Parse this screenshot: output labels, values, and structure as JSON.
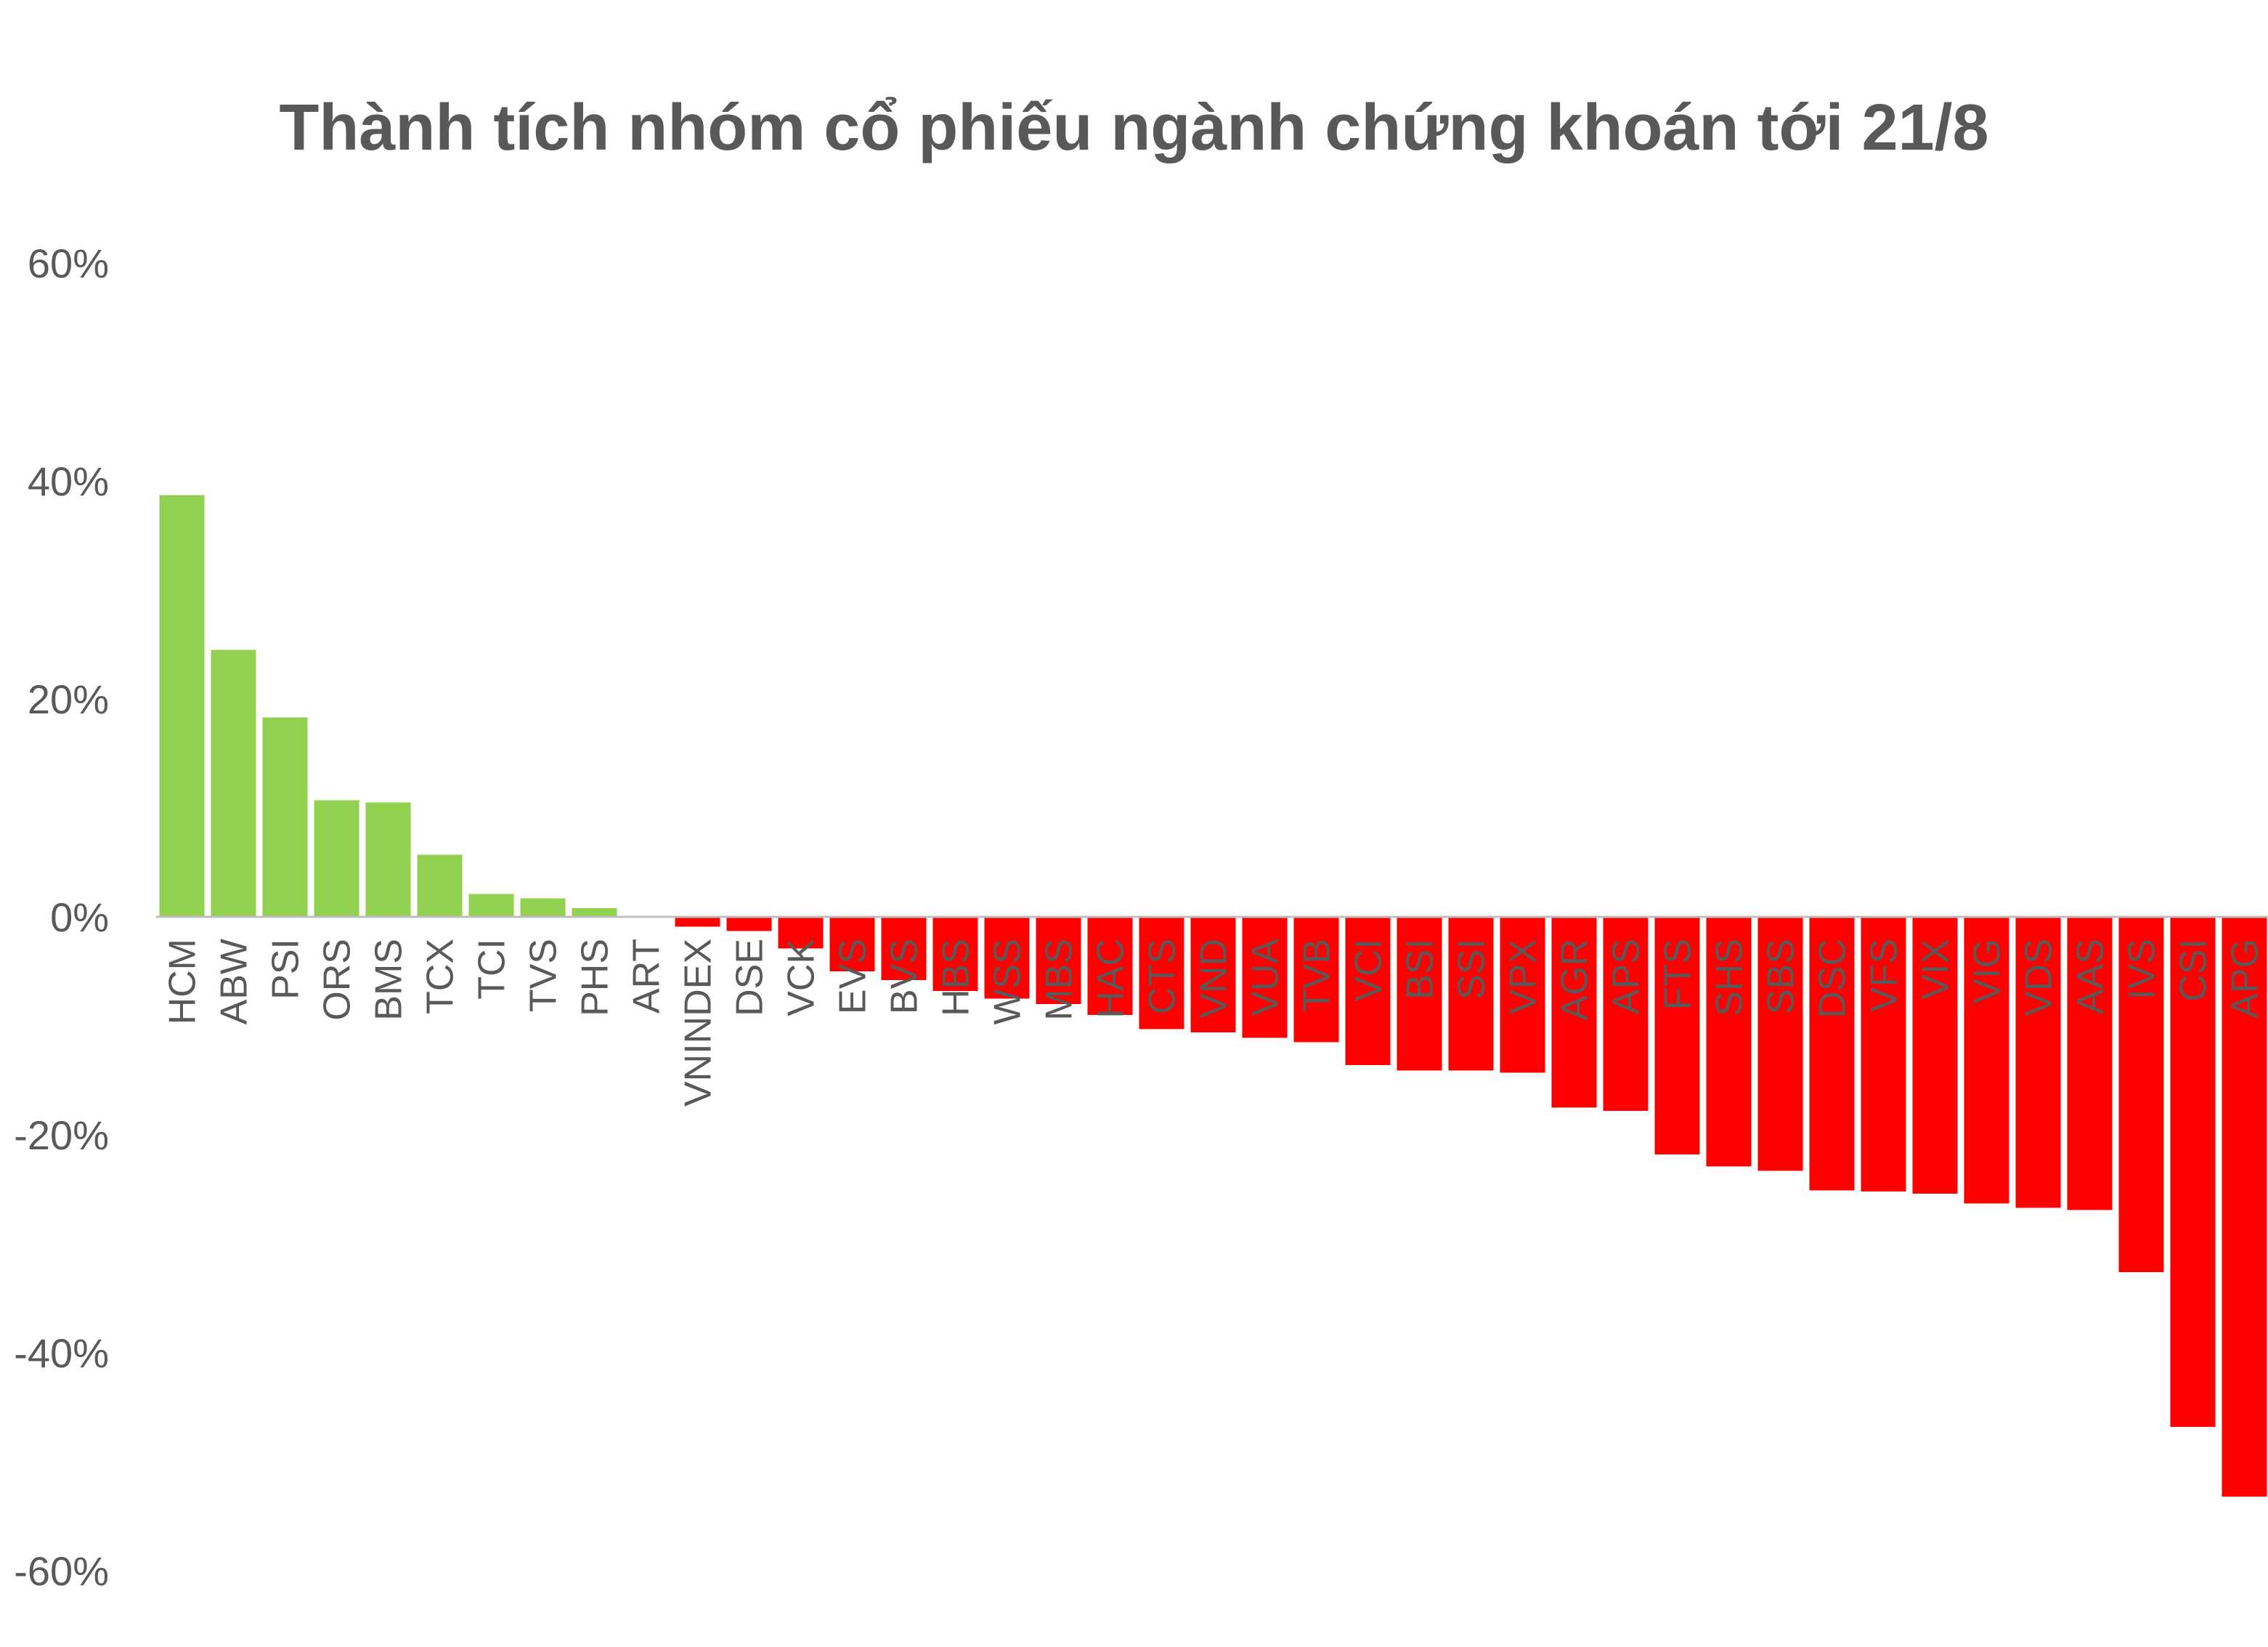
{
  "chart_data": {
    "type": "bar",
    "title": "Thành tích nhóm cổ phiếu ngành chứng khoán tới 21/8",
    "xlabel": "",
    "ylabel": "",
    "ylim": [
      -60,
      60
    ],
    "yticks": [
      60,
      40,
      20,
      0,
      -20,
      -40,
      -60
    ],
    "ytick_labels": [
      "60%",
      "40%",
      "20%",
      "0%",
      "-20%",
      "-40%",
      "-60%"
    ],
    "grid": false,
    "positive_color": "#92d050",
    "negative_color": "#ff0000",
    "categories": [
      "HCM",
      "ABW",
      "PSI",
      "ORS",
      "BMS",
      "TCX",
      "TCI",
      "TVS",
      "PHS",
      "ART",
      "VNINDEX",
      "DSE",
      "VCK",
      "EVS",
      "BVS",
      "HBS",
      "WSS",
      "MBS",
      "HAC",
      "CTS",
      "VND",
      "VUA",
      "TVB",
      "VCI",
      "BSI",
      "SSI",
      "VPX",
      "AGR",
      "APS",
      "FTS",
      "SHS",
      "SBS",
      "DSC",
      "VFS",
      "VIX",
      "VIG",
      "VDS",
      "AAS",
      "IVS",
      "CSI",
      "APG"
    ],
    "values": [
      38.7,
      24.5,
      18.3,
      10.7,
      10.5,
      5.7,
      2.1,
      1.7,
      0.8,
      0,
      -0.9,
      -1.3,
      -2.9,
      -5.0,
      -5.8,
      -6.8,
      -7.5,
      -8.0,
      -9.0,
      -10.3,
      -10.6,
      -11.1,
      -11.5,
      -13.6,
      -14.1,
      -14.1,
      -14.3,
      -17.5,
      -17.8,
      -21.8,
      -22.9,
      -23.3,
      -25.1,
      -25.2,
      -25.4,
      -26.3,
      -26.7,
      -26.9,
      -32.6,
      -46.8,
      -53.2
    ]
  }
}
